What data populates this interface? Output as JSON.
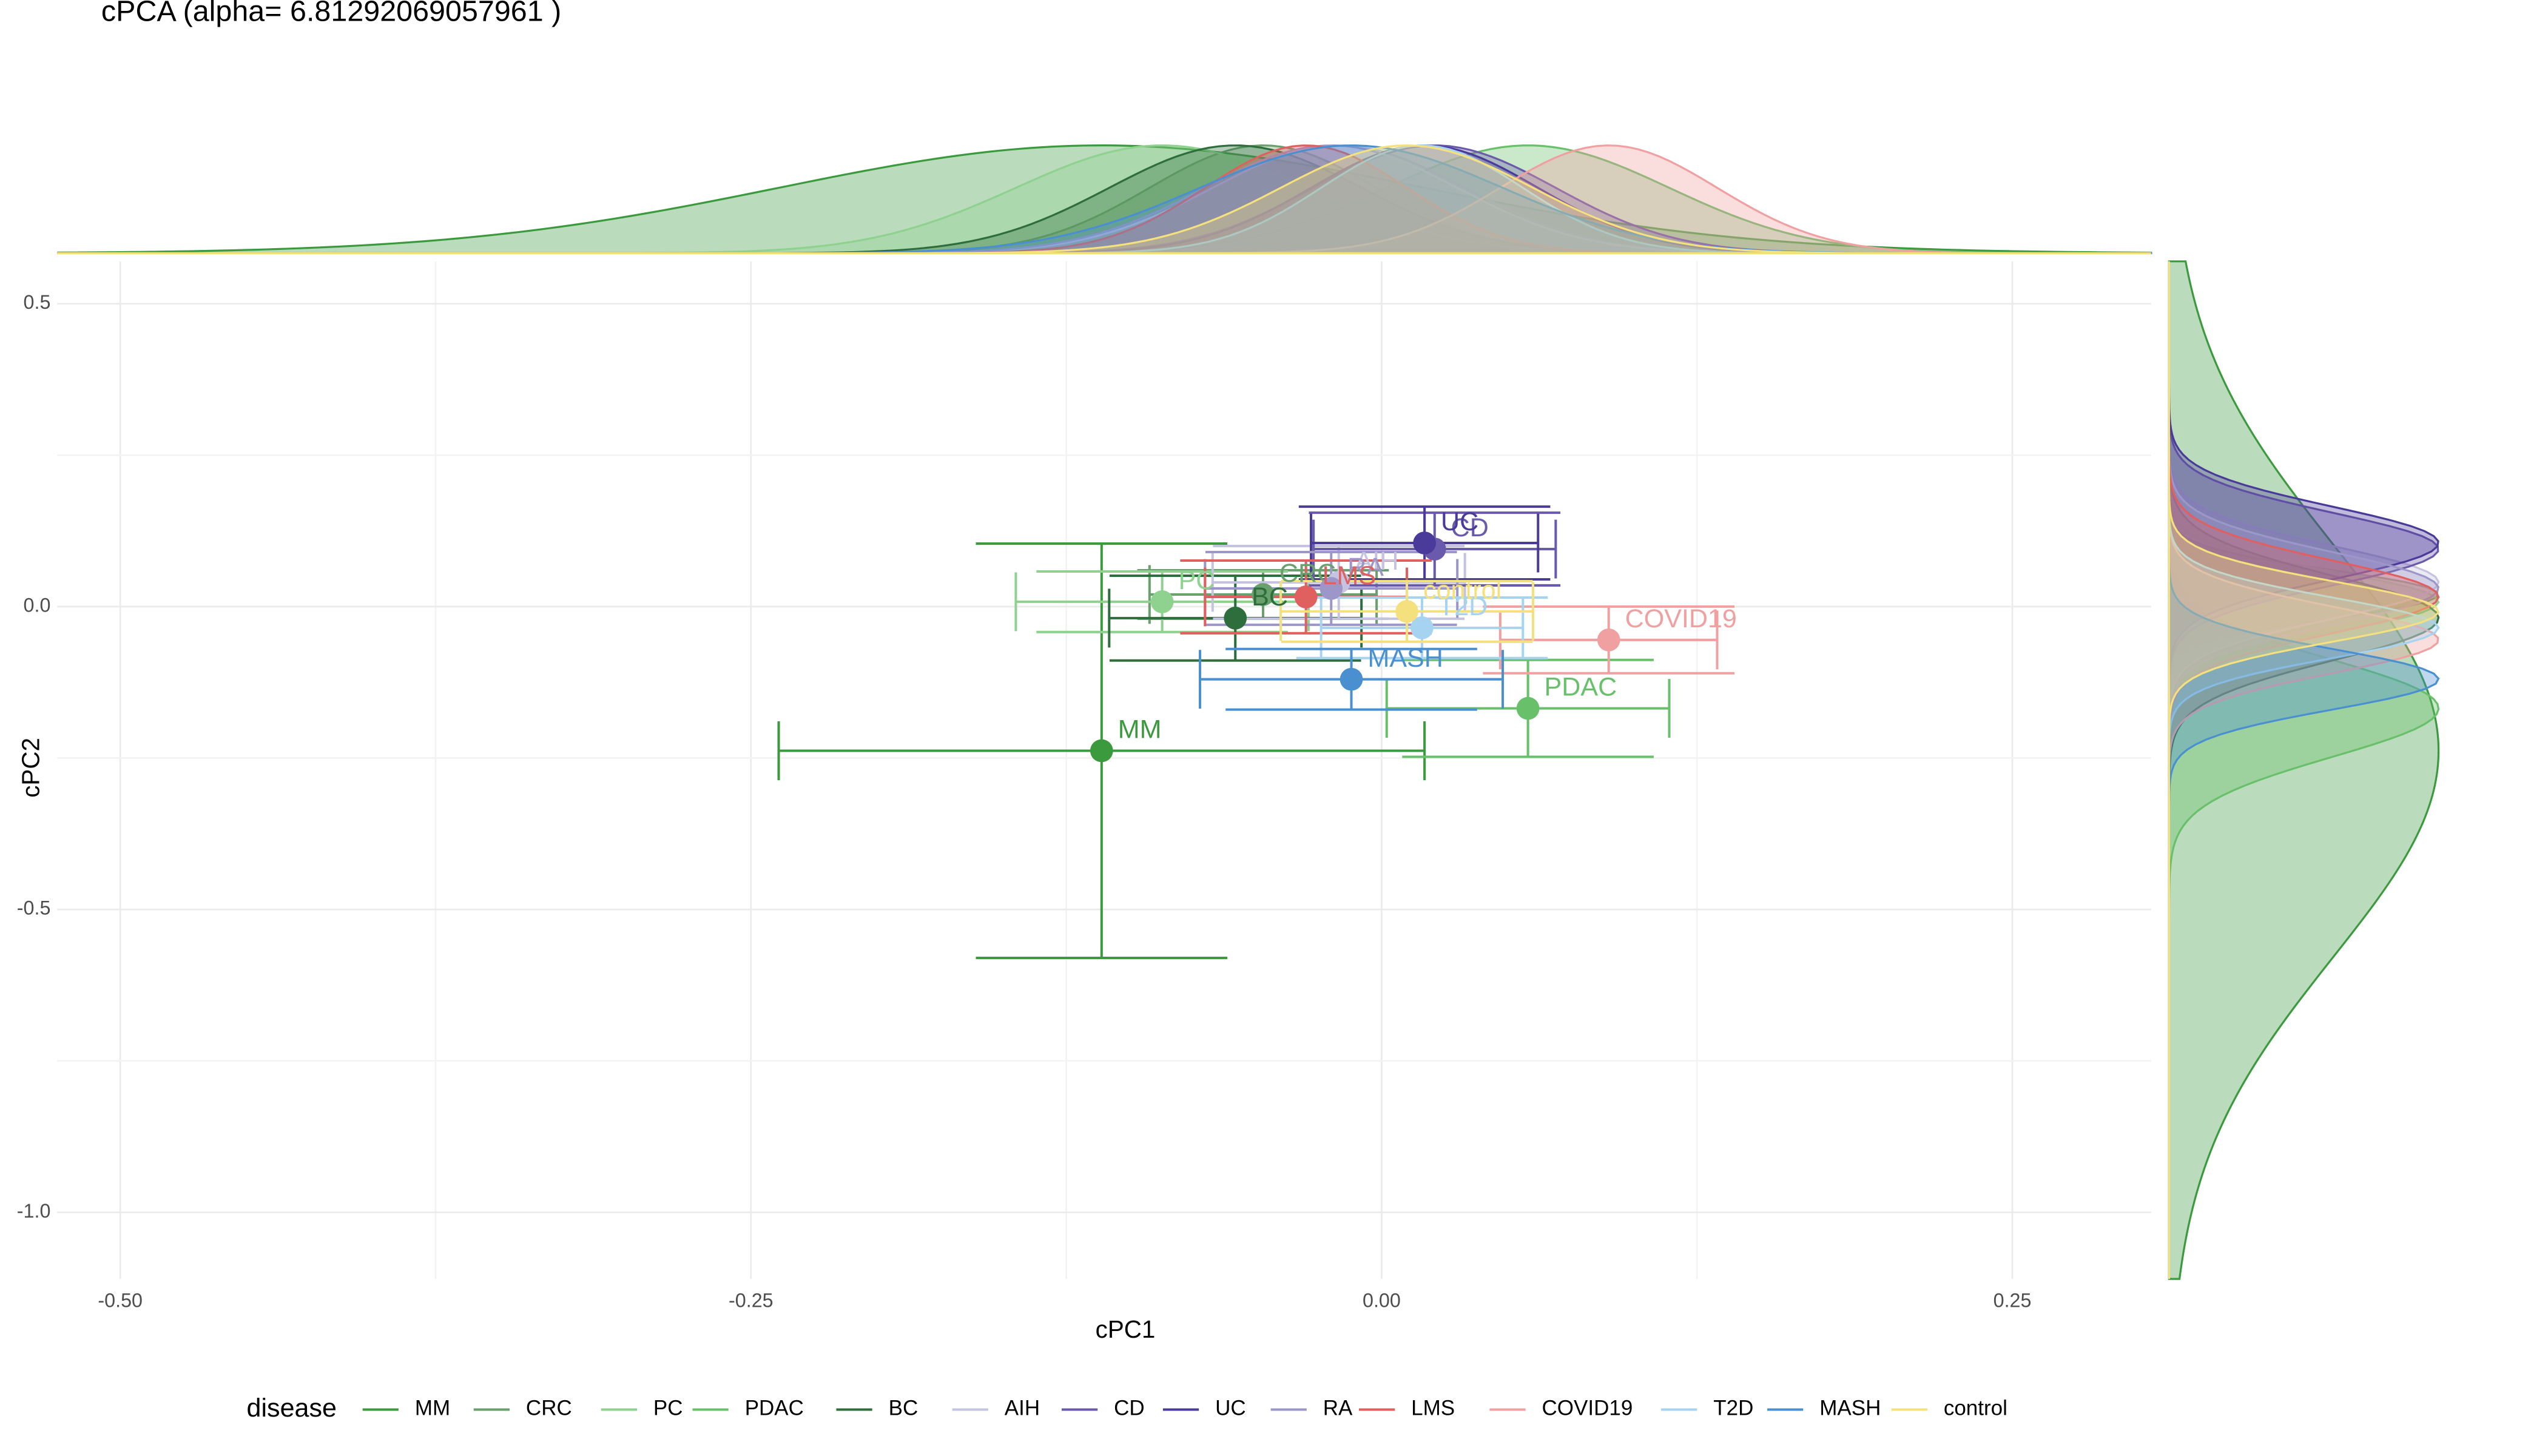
{
  "chart_data": {
    "type": "scatter",
    "title": "cPCA (alpha= 6.81292069057961 )",
    "x_label": "cPC1",
    "y_label": "cPC2",
    "legend_title": "disease",
    "legend_position": "bottom",
    "grid": true,
    "xlim": [
      -0.525,
      0.305
    ],
    "ylim": [
      -1.11,
      0.57
    ],
    "xticks": [
      {
        "value": -0.5,
        "label": "-0.50"
      },
      {
        "value": -0.25,
        "label": "-0.25"
      },
      {
        "value": 0,
        "label": "0.00"
      },
      {
        "value": 0.25,
        "label": "0.25"
      }
    ],
    "yticks": [
      {
        "value": 0.5,
        "label": "0.5"
      },
      {
        "value": 0,
        "label": "0.0"
      },
      {
        "value": -0.5,
        "label": "-0.5"
      },
      {
        "value": -1,
        "label": "-1.0"
      }
    ],
    "series": [
      {
        "name": "MM",
        "color": "#3b9a3e",
        "x": -0.111,
        "y": -0.238,
        "xerr": 0.128,
        "yerr": 0.342
      },
      {
        "name": "CRC",
        "color": "#6a9f6e",
        "x": -0.047,
        "y": 0.02,
        "xerr": 0.045,
        "yerr": 0.04
      },
      {
        "name": "PC",
        "color": "#8fd18f",
        "x": -0.087,
        "y": 0.008,
        "xerr": 0.058,
        "yerr": 0.05
      },
      {
        "name": "PDAC",
        "color": "#68c16a",
        "x": 0.058,
        "y": -0.168,
        "xerr": 0.056,
        "yerr": 0.08
      },
      {
        "name": "BC",
        "color": "#2e6e3c",
        "x": -0.058,
        "y": -0.019,
        "xerr": 0.05,
        "yerr": 0.07
      },
      {
        "name": "AIH",
        "color": "#c6c3e0",
        "x": -0.017,
        "y": 0.04,
        "xerr": 0.05,
        "yerr": 0.06
      },
      {
        "name": "CD",
        "color": "#6a5aab",
        "x": 0.021,
        "y": 0.095,
        "xerr": 0.048,
        "yerr": 0.06
      },
      {
        "name": "UC",
        "color": "#4a3a99",
        "x": 0.017,
        "y": 0.105,
        "xerr": 0.045,
        "yerr": 0.06
      },
      {
        "name": "RA",
        "color": "#9d97c9",
        "x": -0.02,
        "y": 0.03,
        "xerr": 0.05,
        "yerr": 0.06
      },
      {
        "name": "LMS",
        "color": "#e06060",
        "x": -0.03,
        "y": 0.016,
        "xerr": 0.04,
        "yerr": 0.06
      },
      {
        "name": "COVID19",
        "color": "#f0a0a0",
        "x": 0.09,
        "y": -0.055,
        "xerr": 0.043,
        "yerr": 0.055
      },
      {
        "name": "T2D",
        "color": "#a6d3f0",
        "x": 0.016,
        "y": -0.035,
        "xerr": 0.04,
        "yerr": 0.05
      },
      {
        "name": "MASH",
        "color": "#4a90d0",
        "x": -0.012,
        "y": -0.12,
        "xerr": 0.06,
        "yerr": 0.05
      },
      {
        "name": "control",
        "color": "#f5e07e",
        "x": 0.01,
        "y": -0.008,
        "xerr": 0.05,
        "yerr": 0.05
      }
    ]
  }
}
